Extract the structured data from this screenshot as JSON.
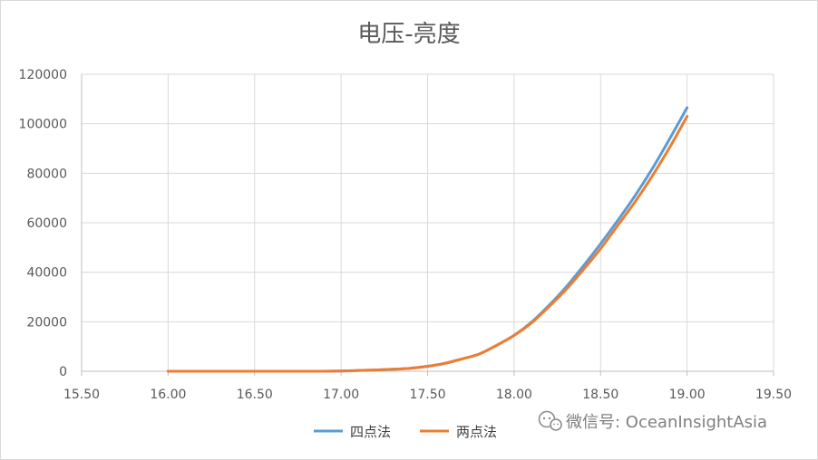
{
  "chart_data": {
    "type": "line",
    "title": "电压-亮度",
    "xlabel": "",
    "ylabel": "",
    "xlim": [
      15.5,
      19.5
    ],
    "ylim": [
      0,
      120000
    ],
    "x_ticks": [
      "15.50",
      "16.00",
      "16.50",
      "17.00",
      "17.50",
      "18.00",
      "18.50",
      "19.00",
      "19.50"
    ],
    "y_ticks": [
      "0",
      "20000",
      "40000",
      "60000",
      "80000",
      "100000",
      "120000"
    ],
    "grid": true,
    "legend_position": "bottom",
    "colors": {
      "四点法": "#5b9bd5",
      "两点法": "#ed7d31",
      "grid": "#d9d9d9",
      "axis": "#bfbfbf"
    },
    "x": [
      16.0,
      16.1,
      16.2,
      16.3,
      16.4,
      16.5,
      16.6,
      16.7,
      16.8,
      16.9,
      17.0,
      17.1,
      17.2,
      17.3,
      17.4,
      17.5,
      17.6,
      17.7,
      17.8,
      17.9,
      18.0,
      18.1,
      18.2,
      18.3,
      18.4,
      18.5,
      18.6,
      18.7,
      18.8,
      18.9,
      19.0
    ],
    "series": [
      {
        "name": "四点法",
        "values": [
          0,
          0,
          0,
          0,
          0,
          0,
          0,
          0,
          0,
          0,
          100,
          300,
          500,
          800,
          1200,
          2000,
          3200,
          5000,
          7000,
          10500,
          14500,
          19800,
          26500,
          34000,
          42500,
          51500,
          61000,
          71000,
          82000,
          94000,
          106500
        ]
      },
      {
        "name": "两点法",
        "values": [
          0,
          0,
          0,
          0,
          0,
          0,
          0,
          0,
          0,
          0,
          100,
          300,
          500,
          800,
          1200,
          2000,
          3200,
          5000,
          7000,
          10500,
          14500,
          19500,
          26000,
          33000,
          41000,
          49500,
          59000,
          68500,
          79000,
          90500,
          103000
        ]
      }
    ]
  },
  "watermark": {
    "icon": "wechat-icon",
    "text": "微信号: OceanInsightAsia"
  }
}
